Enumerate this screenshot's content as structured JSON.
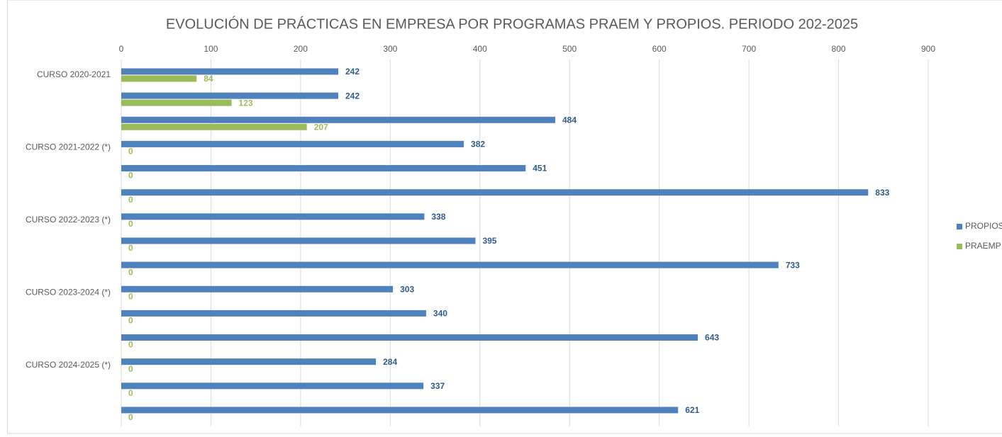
{
  "chart_data": {
    "type": "barh",
    "title": "EVOLUCIÓN DE PRÁCTICAS EN EMPRESA POR PROGRAMAS PRAEM Y PROPIOS. PERIODO 202-2025",
    "categories": [
      "CURSO 2020-2021",
      null,
      null,
      "CURSO 2021-2022 (*)",
      null,
      null,
      "CURSO 2022-2023 (*)",
      null,
      null,
      "CURSO 2023-2024 (*)",
      null,
      null,
      "CURSO 2024-2025 (*)",
      null,
      null
    ],
    "series": [
      {
        "name": "PROPIOS",
        "color": "#4f81bd",
        "label_color": "#2f5b8c",
        "values": [
          242,
          242,
          484,
          382,
          451,
          833,
          338,
          395,
          733,
          303,
          340,
          643,
          284,
          337,
          621
        ]
      },
      {
        "name": "PRAEMP",
        "color": "#9bbb59",
        "label_color": "#9bbb59",
        "values": [
          84,
          123,
          207,
          0,
          0,
          0,
          0,
          0,
          0,
          0,
          0,
          0,
          0,
          0,
          0
        ]
      }
    ],
    "xlim": [
      0,
      900
    ],
    "xticks": [
      0,
      100,
      200,
      300,
      400,
      500,
      600,
      700,
      800,
      900
    ],
    "grid": true,
    "legend": "right"
  }
}
